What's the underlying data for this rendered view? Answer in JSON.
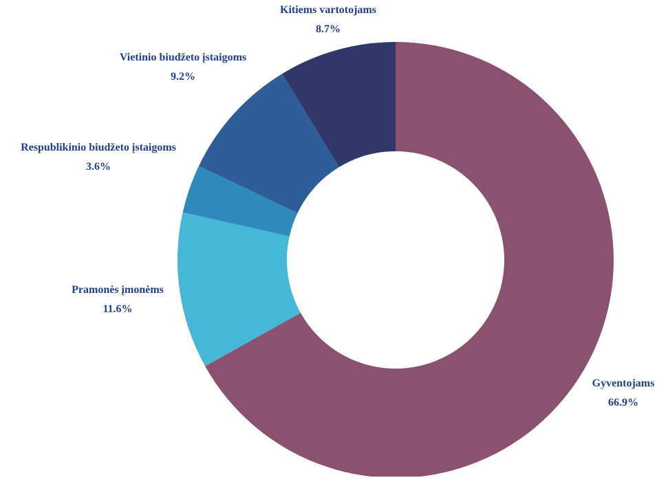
{
  "chart_data": {
    "type": "pie",
    "variant": "donut",
    "title": "",
    "slices": [
      {
        "label": "Gyventojams",
        "value": 66.9,
        "value_label": "66.9%",
        "color": "#8a5270"
      },
      {
        "label": "Pramonės įmonėms",
        "value": 11.6,
        "value_label": "11.6%",
        "color": "#44b8d6"
      },
      {
        "label": "Respublikinio biudžeto įstaigoms",
        "value": 3.6,
        "value_label": "3.6%",
        "color": "#2e8aba"
      },
      {
        "label": "Vietinio biudžeto įstaigoms",
        "value": 9.2,
        "value_label": "9.2%",
        "color": "#2d5e97"
      },
      {
        "label": "Kitiems vartotojams",
        "value": 8.7,
        "value_label": "8.7%",
        "color": "#303769"
      }
    ],
    "start": "12 o'clock",
    "direction": "clockwise",
    "label_color": "#1f3f8f",
    "legend": "none"
  }
}
